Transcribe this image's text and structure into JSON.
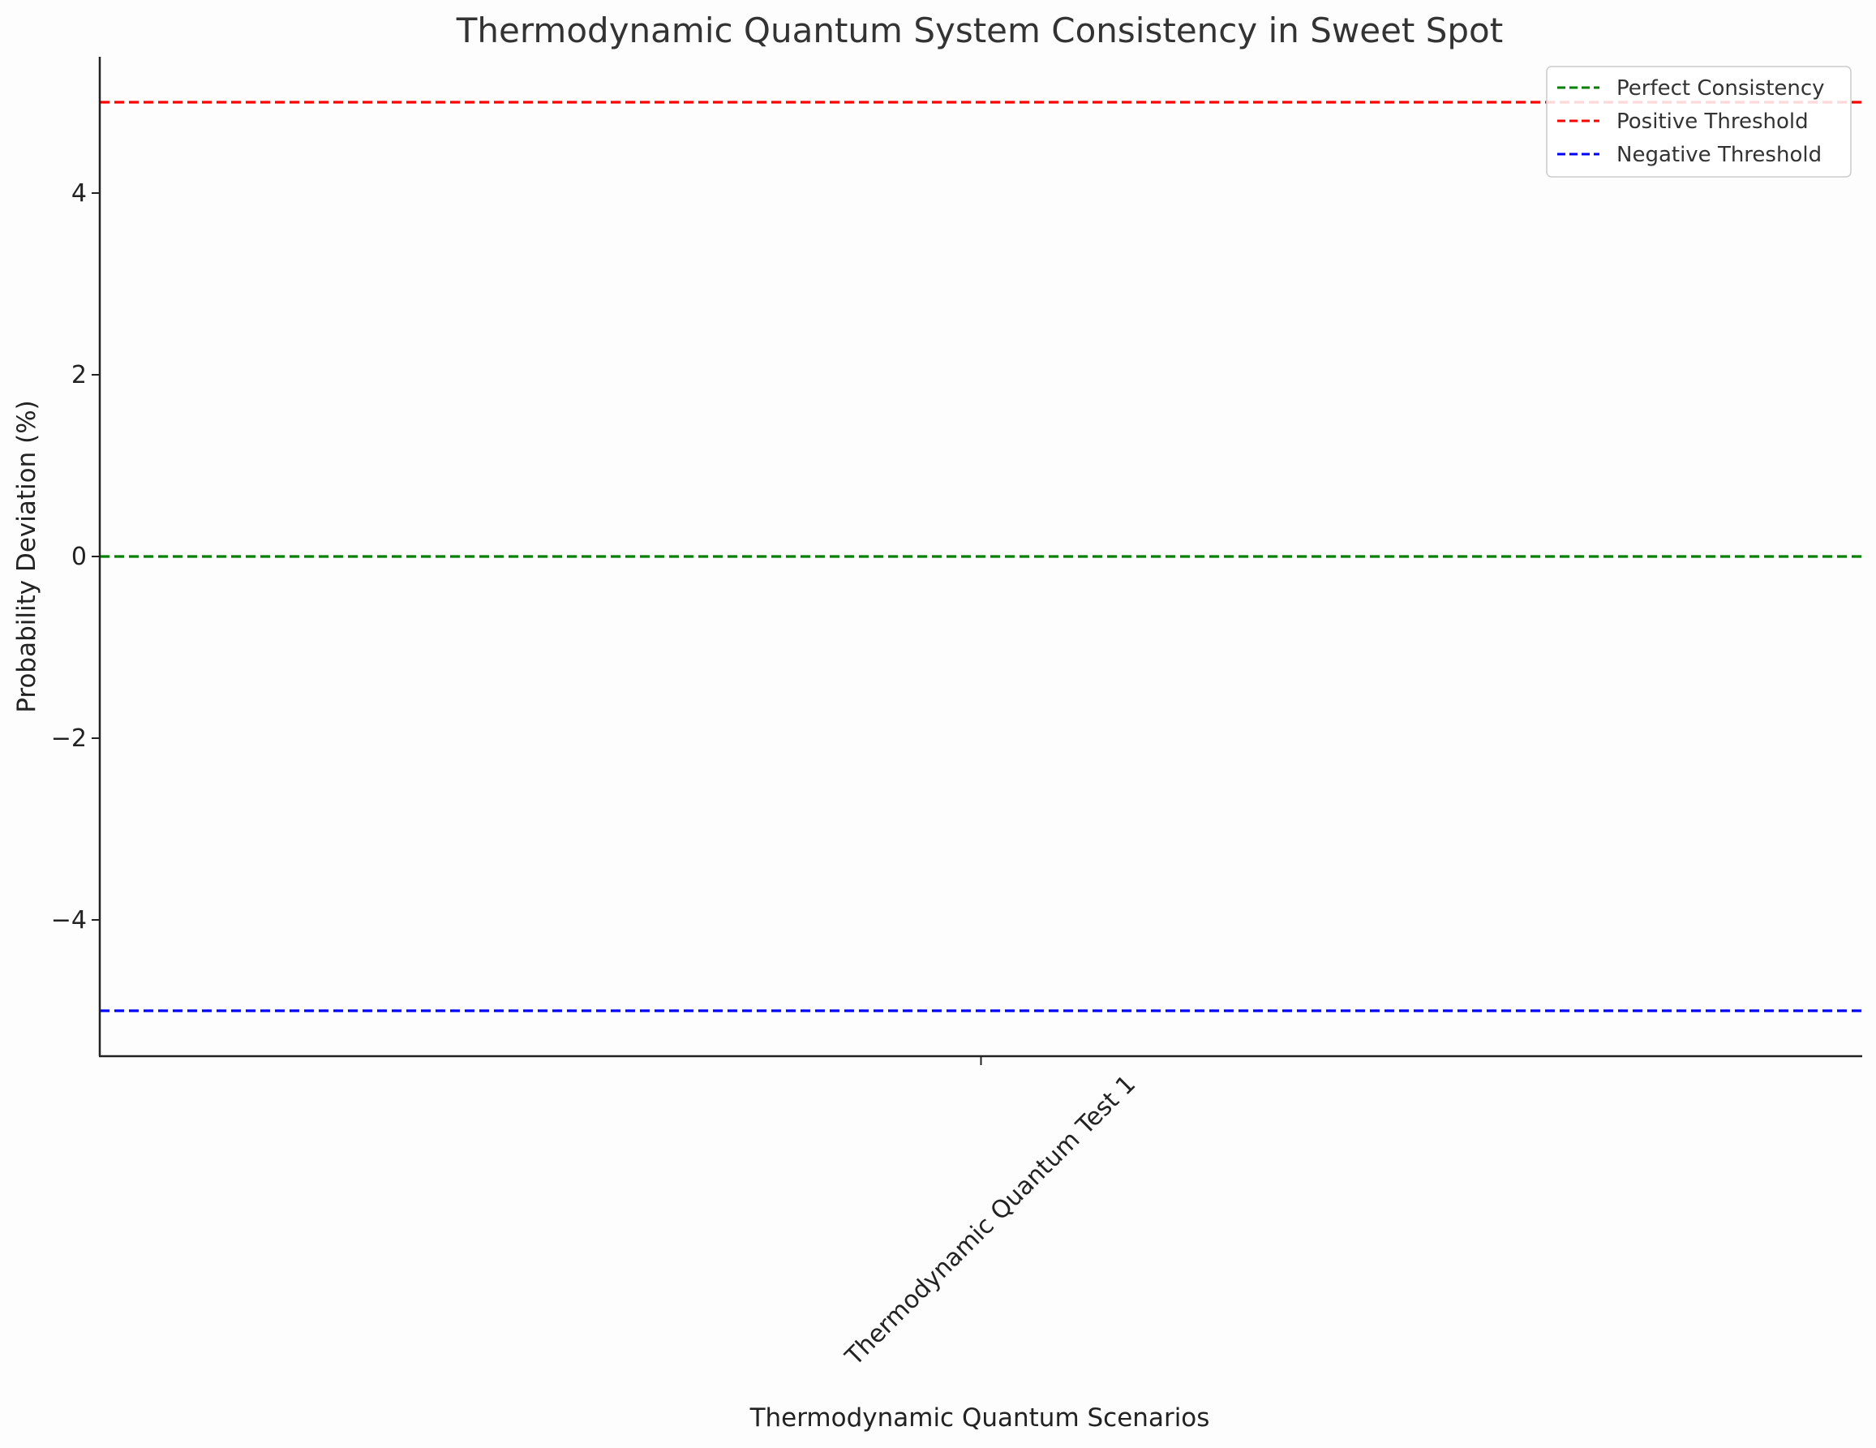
{
  "chart_data": {
    "type": "line",
    "title": "Thermodynamic Quantum System Consistency in Sweet Spot",
    "xlabel": "Thermodynamic Quantum Scenarios",
    "ylabel": "Probability Deviation (%)",
    "categories": [
      "Thermodynamic Quantum Test 1"
    ],
    "ylim": [
      -5.5,
      5.5
    ],
    "yticks": [
      -4,
      -2,
      0,
      2,
      4
    ],
    "ytick_labels": [
      "−4",
      "−2",
      "0",
      "2",
      "4"
    ],
    "grid": false,
    "legend_position": "top-right",
    "reference_lines": [
      {
        "name": "Perfect Consistency",
        "y": 0,
        "color": "#008000",
        "style": "dashed"
      },
      {
        "name": "Positive Threshold",
        "y": 5,
        "color": "#ff0000",
        "style": "dashed"
      },
      {
        "name": "Negative Threshold",
        "y": -5,
        "color": "#0000ff",
        "style": "dashed"
      }
    ]
  }
}
